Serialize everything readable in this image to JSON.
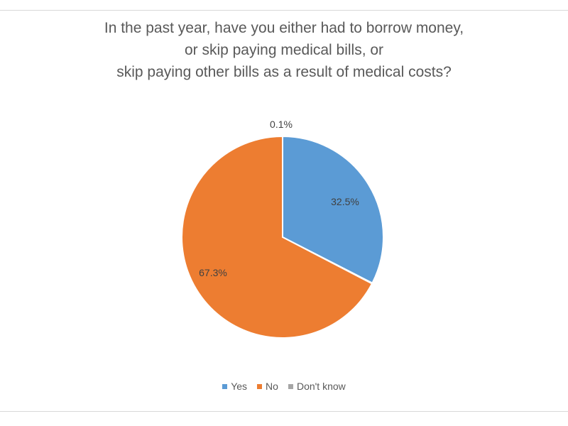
{
  "chart_data": {
    "type": "pie",
    "title_lines": [
      "In the past year, have you either had to borrow money,",
      "or skip paying medical bills, or",
      "skip paying other bills as a result of medical costs?"
    ],
    "slices": [
      {
        "name": "Yes",
        "value": 32.5,
        "label": "32.5%",
        "color": "#5b9bd5"
      },
      {
        "name": "Don't know",
        "value": 0.1,
        "label": "0.1%",
        "color": "#a5a5a5"
      },
      {
        "name": "No",
        "value": 67.3,
        "label": "67.3%",
        "color": "#ed7d31"
      }
    ],
    "start_angle_deg": 0,
    "direction": "clockwise",
    "legend_position": "bottom",
    "legend": [
      {
        "label": "Yes",
        "color": "#5b9bd5"
      },
      {
        "label": "No",
        "color": "#ed7d31"
      },
      {
        "label": "Don't know",
        "color": "#a5a5a5"
      }
    ]
  }
}
